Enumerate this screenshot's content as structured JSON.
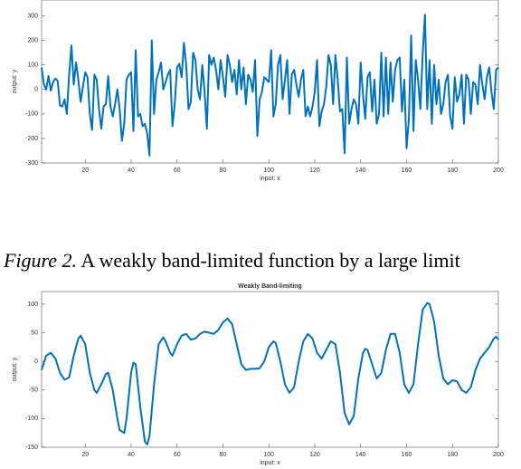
{
  "chart_data": [
    {
      "type": "line",
      "xlabel": "input: x",
      "ylabel": "output: y",
      "x": [
        1,
        2,
        3,
        4,
        5,
        6,
        7,
        8,
        9,
        10,
        11,
        12,
        13,
        14,
        15,
        16,
        17,
        18,
        19,
        20,
        21,
        22,
        23,
        24,
        25,
        26,
        27,
        28,
        29,
        30,
        31,
        32,
        33,
        34,
        35,
        36,
        37,
        38,
        39,
        40,
        41,
        42,
        43,
        44,
        45,
        46,
        47,
        48,
        49,
        50,
        51,
        52,
        53,
        54,
        55,
        56,
        57,
        58,
        59,
        60,
        61,
        62,
        63,
        64,
        65,
        66,
        67,
        68,
        69,
        70,
        71,
        72,
        73,
        74,
        75,
        76,
        77,
        78,
        79,
        80,
        81,
        82,
        83,
        84,
        85,
        86,
        87,
        88,
        89,
        90,
        91,
        92,
        93,
        94,
        95,
        96,
        97,
        98,
        99,
        100,
        101,
        102,
        103,
        104,
        105,
        106,
        107,
        108,
        109,
        110,
        111,
        112,
        113,
        114,
        115,
        116,
        117,
        118,
        119,
        120,
        121,
        122,
        123,
        124,
        125,
        126,
        127,
        128,
        129,
        130,
        131,
        132,
        133,
        134,
        135,
        136,
        137,
        138,
        139,
        140,
        141,
        142,
        143,
        144,
        145,
        146,
        147,
        148,
        149,
        150,
        151,
        152,
        153,
        154,
        155,
        156,
        157,
        158,
        159,
        160,
        161,
        162,
        163,
        164,
        165,
        166,
        167,
        168,
        169,
        170,
        171,
        172,
        173,
        174,
        175,
        176,
        177,
        178,
        179,
        180,
        181,
        182,
        183,
        184,
        185,
        186,
        187,
        188,
        189,
        190,
        191,
        192,
        193,
        194,
        195,
        196,
        197,
        198,
        199,
        200
      ],
      "series": [
        {
          "name": "y",
          "color": "#0072bd",
          "values": [
            90,
            20,
            0,
            55,
            -5,
            30,
            45,
            35,
            -65,
            -70,
            -40,
            -100,
            60,
            180,
            20,
            110,
            40,
            -50,
            10,
            70,
            50,
            -100,
            -165,
            60,
            40,
            -80,
            -160,
            -70,
            -60,
            55,
            -70,
            -110,
            -60,
            0,
            -80,
            -210,
            -140,
            40,
            60,
            70,
            -170,
            160,
            -110,
            -100,
            -150,
            -140,
            -180,
            -270,
            200,
            -100,
            40,
            70,
            110,
            0,
            30,
            60,
            80,
            -150,
            -60,
            90,
            105,
            50,
            190,
            100,
            -80,
            -50,
            150,
            120,
            0,
            -40,
            100,
            -10,
            -160,
            140,
            100,
            130,
            80,
            0,
            120,
            50,
            -30,
            140,
            100,
            30,
            80,
            -20,
            120,
            0,
            90,
            -60,
            60,
            40,
            -10,
            120,
            -190,
            -40,
            -10,
            50,
            40,
            30,
            160,
            -110,
            -60,
            100,
            140,
            -40,
            40,
            120,
            -100,
            60,
            80,
            20,
            -30,
            40,
            80,
            -110,
            -70,
            -110,
            -70,
            -10,
            120,
            -150,
            -90,
            -60,
            10,
            140,
            100,
            -60,
            140,
            40,
            -90,
            -80,
            -260,
            130,
            -140,
            -80,
            -40,
            -60,
            -140,
            110,
            -20,
            -120,
            50,
            70,
            -90,
            40,
            -140,
            -100,
            150,
            -110,
            130,
            -100,
            110,
            -50,
            80,
            120,
            130,
            -90,
            40,
            -240,
            -120,
            220,
            -170,
            120,
            40,
            -80,
            140,
            305,
            -80,
            120,
            -140,
            100,
            -60,
            40,
            -100,
            -60,
            30,
            60,
            -110,
            -160,
            50,
            -50,
            -20,
            60,
            -140,
            60,
            40,
            -100,
            30,
            20,
            -60,
            100,
            20,
            -40,
            50,
            90,
            -10,
            -80,
            80,
            90
          ]
        }
      ],
      "xlim": [
        1,
        200
      ],
      "ylim": [
        -300,
        365
      ],
      "xticks": [
        20,
        40,
        60,
        80,
        100,
        120,
        140,
        160,
        180,
        200
      ],
      "yticks": [
        -300,
        -200,
        -100,
        0,
        100,
        200,
        300
      ],
      "grid": false
    },
    {
      "type": "line",
      "title": "Weakly Band-limiting",
      "xlabel": "input: x",
      "ylabel": "output: y",
      "x": [
        1,
        3,
        5,
        7,
        9,
        11,
        13,
        15,
        17,
        18,
        20,
        22,
        24,
        25,
        27,
        29,
        30,
        32,
        34,
        35,
        37,
        38,
        40,
        41,
        42,
        44,
        46,
        47,
        48,
        50,
        52,
        54,
        55,
        57,
        58,
        60,
        62,
        64,
        66,
        68,
        70,
        72,
        74,
        76,
        78,
        80,
        82,
        84,
        86,
        88,
        90,
        92,
        94,
        96,
        98,
        100,
        102,
        103,
        105,
        107,
        109,
        111,
        113,
        115,
        117,
        119,
        121,
        123,
        125,
        127,
        129,
        131,
        133,
        135,
        137,
        139,
        141,
        142,
        143,
        145,
        147,
        149,
        151,
        153,
        155,
        157,
        159,
        161,
        163,
        165,
        167,
        169,
        170,
        172,
        174,
        176,
        178,
        180,
        182,
        184,
        186,
        188,
        190,
        192,
        194,
        196,
        198,
        199,
        200
      ],
      "series": [
        {
          "name": "y",
          "color": "#0072bd",
          "values": [
            -15,
            10,
            15,
            5,
            -20,
            -32,
            -28,
            10,
            40,
            45,
            30,
            -20,
            -50,
            -55,
            -40,
            -22,
            -20,
            -50,
            -100,
            -120,
            -125,
            -100,
            -20,
            -2,
            -5,
            -80,
            -140,
            -145,
            -130,
            -40,
            30,
            42,
            35,
            15,
            10,
            30,
            45,
            48,
            38,
            40,
            48,
            52,
            50,
            48,
            55,
            68,
            75,
            65,
            30,
            -5,
            -15,
            -13,
            -13,
            -12,
            0,
            25,
            35,
            32,
            0,
            -40,
            -55,
            -45,
            0,
            35,
            48,
            40,
            15,
            5,
            20,
            35,
            30,
            -20,
            -90,
            -110,
            -95,
            -30,
            15,
            22,
            20,
            -5,
            -30,
            -20,
            20,
            48,
            48,
            15,
            -40,
            -55,
            -40,
            30,
            90,
            102,
            100,
            70,
            10,
            -30,
            -40,
            -33,
            -35,
            -50,
            -55,
            -45,
            -15,
            5,
            15,
            25,
            40,
            43,
            38
          ]
        }
      ],
      "xlim": [
        1,
        200
      ],
      "ylim": [
        -150,
        122
      ],
      "xticks": [
        20,
        40,
        60,
        80,
        100,
        120,
        140,
        160,
        180,
        200
      ],
      "yticks": [
        -150,
        -100,
        -50,
        0,
        50,
        100
      ],
      "grid": false
    }
  ],
  "caption": {
    "label": "Figure 2.",
    "text": "A weakly band-limited function by a large limit"
  }
}
